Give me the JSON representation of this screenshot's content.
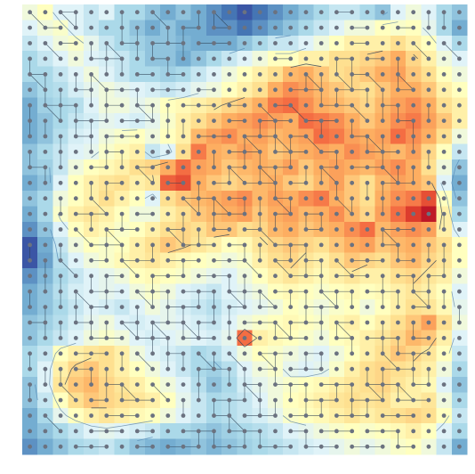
{
  "chart_data": {
    "type": "heatmap",
    "title": "",
    "xlabel": "",
    "ylabel": "",
    "axes_visible": false,
    "grid": false,
    "legend": "none",
    "colormap": "RdYlBu_r",
    "colormap_stops": [
      "#313695",
      "#4575b4",
      "#74add1",
      "#abd9e9",
      "#e0f3f8",
      "#ffffbf",
      "#fee090",
      "#fdae61",
      "#f46d43",
      "#d73027",
      "#a50026"
    ],
    "value_range": [
      0,
      1
    ],
    "grid_size": [
      29,
      29
    ],
    "overlays": [
      "sample-points",
      "point-connections",
      "contour-lines"
    ],
    "point_color": "#6b7280",
    "edge_color": "#2c3e50",
    "values": [
      [
        0.45,
        0.5,
        0.4,
        0.4,
        0.35,
        0.4,
        0.3,
        0.3,
        0.25,
        0.2,
        0.25,
        0.2,
        0.15,
        0.1,
        0.05,
        0.1,
        0.15,
        0.2,
        0.25,
        0.3,
        0.35,
        0.35,
        0.3,
        0.25,
        0.4,
        0.45,
        0.4,
        0.3,
        0.25
      ],
      [
        0.4,
        0.45,
        0.48,
        0.4,
        0.35,
        0.3,
        0.3,
        0.25,
        0.2,
        0.25,
        0.2,
        0.2,
        0.15,
        0.15,
        0.1,
        0.15,
        0.2,
        0.25,
        0.3,
        0.35,
        0.4,
        0.45,
        0.45,
        0.5,
        0.48,
        0.5,
        0.42,
        0.3,
        0.2
      ],
      [
        0.35,
        0.4,
        0.45,
        0.48,
        0.42,
        0.35,
        0.3,
        0.28,
        0.25,
        0.25,
        0.22,
        0.2,
        0.2,
        0.2,
        0.25,
        0.3,
        0.35,
        0.35,
        0.4,
        0.45,
        0.5,
        0.55,
        0.55,
        0.55,
        0.6,
        0.55,
        0.5,
        0.4,
        0.3
      ],
      [
        0.3,
        0.35,
        0.4,
        0.45,
        0.4,
        0.38,
        0.35,
        0.3,
        0.25,
        0.25,
        0.2,
        0.25,
        0.3,
        0.35,
        0.4,
        0.45,
        0.5,
        0.5,
        0.55,
        0.55,
        0.6,
        0.6,
        0.62,
        0.65,
        0.7,
        0.62,
        0.55,
        0.45,
        0.4
      ],
      [
        0.3,
        0.3,
        0.35,
        0.4,
        0.45,
        0.4,
        0.35,
        0.3,
        0.3,
        0.28,
        0.3,
        0.35,
        0.4,
        0.45,
        0.5,
        0.55,
        0.6,
        0.68,
        0.7,
        0.65,
        0.6,
        0.62,
        0.65,
        0.7,
        0.72,
        0.65,
        0.6,
        0.5,
        0.45
      ],
      [
        0.25,
        0.3,
        0.32,
        0.38,
        0.42,
        0.45,
        0.42,
        0.4,
        0.38,
        0.35,
        0.38,
        0.42,
        0.45,
        0.5,
        0.55,
        0.6,
        0.7,
        0.75,
        0.72,
        0.68,
        0.65,
        0.62,
        0.6,
        0.65,
        0.7,
        0.7,
        0.65,
        0.55,
        0.5
      ],
      [
        0.2,
        0.28,
        0.3,
        0.32,
        0.4,
        0.45,
        0.45,
        0.42,
        0.45,
        0.5,
        0.52,
        0.55,
        0.58,
        0.62,
        0.65,
        0.7,
        0.78,
        0.8,
        0.75,
        0.7,
        0.68,
        0.65,
        0.62,
        0.68,
        0.72,
        0.75,
        0.7,
        0.6,
        0.55
      ],
      [
        0.2,
        0.25,
        0.3,
        0.35,
        0.38,
        0.42,
        0.4,
        0.38,
        0.42,
        0.48,
        0.55,
        0.6,
        0.65,
        0.7,
        0.72,
        0.75,
        0.72,
        0.7,
        0.8,
        0.78,
        0.75,
        0.7,
        0.65,
        0.7,
        0.75,
        0.78,
        0.72,
        0.65,
        0.55
      ],
      [
        0.2,
        0.25,
        0.32,
        0.38,
        0.4,
        0.45,
        0.48,
        0.5,
        0.45,
        0.5,
        0.55,
        0.68,
        0.72,
        0.75,
        0.7,
        0.72,
        0.68,
        0.7,
        0.72,
        0.8,
        0.78,
        0.72,
        0.7,
        0.72,
        0.8,
        0.75,
        0.7,
        0.6,
        0.45
      ],
      [
        0.25,
        0.3,
        0.35,
        0.4,
        0.42,
        0.48,
        0.52,
        0.55,
        0.35,
        0.4,
        0.6,
        0.78,
        0.7,
        0.68,
        0.72,
        0.7,
        0.65,
        0.68,
        0.7,
        0.72,
        0.7,
        0.75,
        0.72,
        0.7,
        0.68,
        0.72,
        0.62,
        0.5,
        0.35
      ],
      [
        0.25,
        0.28,
        0.35,
        0.45,
        0.5,
        0.52,
        0.55,
        0.6,
        0.62,
        0.7,
        0.8,
        0.72,
        0.7,
        0.65,
        0.68,
        0.7,
        0.68,
        0.72,
        0.65,
        0.7,
        0.72,
        0.7,
        0.68,
        0.72,
        0.75,
        0.7,
        0.6,
        0.45,
        0.25
      ],
      [
        0.2,
        0.25,
        0.4,
        0.5,
        0.55,
        0.58,
        0.6,
        0.55,
        0.58,
        0.82,
        0.85,
        0.7,
        0.65,
        0.62,
        0.65,
        0.68,
        0.7,
        0.65,
        0.62,
        0.68,
        0.72,
        0.65,
        0.6,
        0.68,
        0.72,
        0.7,
        0.65,
        0.4,
        0.2
      ],
      [
        0.25,
        0.3,
        0.45,
        0.5,
        0.55,
        0.6,
        0.55,
        0.5,
        0.4,
        0.6,
        0.65,
        0.68,
        0.7,
        0.72,
        0.75,
        0.68,
        0.72,
        0.7,
        0.75,
        0.78,
        0.7,
        0.65,
        0.6,
        0.7,
        0.75,
        0.78,
        0.85,
        0.5,
        0.25
      ],
      [
        0.2,
        0.3,
        0.48,
        0.55,
        0.58,
        0.55,
        0.5,
        0.45,
        0.45,
        0.55,
        0.6,
        0.65,
        0.68,
        0.7,
        0.72,
        0.65,
        0.7,
        0.72,
        0.68,
        0.7,
        0.75,
        0.68,
        0.62,
        0.72,
        0.8,
        0.88,
        0.95,
        0.55,
        0.3
      ],
      [
        0.15,
        0.25,
        0.4,
        0.5,
        0.55,
        0.52,
        0.48,
        0.5,
        0.55,
        0.6,
        0.62,
        0.6,
        0.65,
        0.65,
        0.6,
        0.62,
        0.68,
        0.7,
        0.65,
        0.68,
        0.7,
        0.75,
        0.8,
        0.68,
        0.72,
        0.75,
        0.72,
        0.55,
        0.4
      ],
      [
        0.05,
        0.2,
        0.35,
        0.45,
        0.5,
        0.48,
        0.5,
        0.55,
        0.6,
        0.65,
        0.62,
        0.58,
        0.55,
        0.5,
        0.52,
        0.58,
        0.62,
        0.65,
        0.62,
        0.6,
        0.65,
        0.7,
        0.72,
        0.65,
        0.68,
        0.7,
        0.65,
        0.6,
        0.5
      ],
      [
        0.05,
        0.18,
        0.32,
        0.4,
        0.45,
        0.48,
        0.52,
        0.55,
        0.58,
        0.55,
        0.52,
        0.5,
        0.48,
        0.45,
        0.48,
        0.55,
        0.6,
        0.62,
        0.58,
        0.55,
        0.6,
        0.65,
        0.62,
        0.6,
        0.65,
        0.68,
        0.62,
        0.58,
        0.5
      ],
      [
        0.15,
        0.22,
        0.3,
        0.35,
        0.4,
        0.42,
        0.45,
        0.5,
        0.52,
        0.5,
        0.48,
        0.45,
        0.42,
        0.4,
        0.45,
        0.5,
        0.55,
        0.58,
        0.55,
        0.52,
        0.55,
        0.58,
        0.55,
        0.55,
        0.6,
        0.62,
        0.58,
        0.55,
        0.45
      ],
      [
        0.2,
        0.25,
        0.32,
        0.38,
        0.4,
        0.42,
        0.4,
        0.45,
        0.48,
        0.45,
        0.4,
        0.38,
        0.35,
        0.4,
        0.42,
        0.45,
        0.5,
        0.52,
        0.5,
        0.48,
        0.5,
        0.52,
        0.5,
        0.52,
        0.55,
        0.58,
        0.55,
        0.5,
        0.4
      ],
      [
        0.2,
        0.25,
        0.3,
        0.35,
        0.4,
        0.38,
        0.35,
        0.4,
        0.45,
        0.42,
        0.38,
        0.35,
        0.32,
        0.38,
        0.4,
        0.42,
        0.45,
        0.5,
        0.48,
        0.45,
        0.48,
        0.5,
        0.45,
        0.5,
        0.55,
        0.6,
        0.58,
        0.52,
        0.42
      ],
      [
        0.25,
        0.28,
        0.32,
        0.38,
        0.42,
        0.45,
        0.4,
        0.38,
        0.4,
        0.42,
        0.4,
        0.38,
        0.35,
        0.4,
        0.45,
        0.48,
        0.5,
        0.52,
        0.5,
        0.48,
        0.52,
        0.55,
        0.5,
        0.55,
        0.6,
        0.65,
        0.72,
        0.6,
        0.45
      ],
      [
        0.25,
        0.3,
        0.35,
        0.4,
        0.45,
        0.48,
        0.45,
        0.4,
        0.38,
        0.4,
        0.42,
        0.4,
        0.38,
        0.42,
        0.8,
        0.55,
        0.52,
        0.5,
        0.48,
        0.45,
        0.5,
        0.52,
        0.55,
        0.58,
        0.62,
        0.68,
        0.65,
        0.55,
        0.4
      ],
      [
        0.3,
        0.35,
        0.5,
        0.55,
        0.58,
        0.6,
        0.55,
        0.45,
        0.4,
        0.38,
        0.35,
        0.3,
        0.32,
        0.38,
        0.45,
        0.5,
        0.48,
        0.45,
        0.42,
        0.4,
        0.45,
        0.5,
        0.55,
        0.6,
        0.65,
        0.62,
        0.58,
        0.5,
        0.35
      ],
      [
        0.3,
        0.4,
        0.55,
        0.62,
        0.65,
        0.6,
        0.55,
        0.5,
        0.45,
        0.4,
        0.35,
        0.3,
        0.28,
        0.32,
        0.4,
        0.45,
        0.48,
        0.42,
        0.4,
        0.42,
        0.48,
        0.55,
        0.6,
        0.62,
        0.6,
        0.58,
        0.55,
        0.45,
        0.3
      ],
      [
        0.25,
        0.4,
        0.58,
        0.65,
        0.68,
        0.62,
        0.58,
        0.55,
        0.5,
        0.45,
        0.4,
        0.32,
        0.25,
        0.3,
        0.38,
        0.42,
        0.45,
        0.48,
        0.5,
        0.52,
        0.55,
        0.58,
        0.6,
        0.62,
        0.58,
        0.55,
        0.52,
        0.4,
        0.25
      ],
      [
        0.25,
        0.35,
        0.5,
        0.6,
        0.65,
        0.62,
        0.6,
        0.58,
        0.55,
        0.5,
        0.42,
        0.35,
        0.3,
        0.32,
        0.35,
        0.4,
        0.45,
        0.5,
        0.52,
        0.55,
        0.58,
        0.6,
        0.58,
        0.6,
        0.55,
        0.55,
        0.58,
        0.45,
        0.3
      ],
      [
        0.2,
        0.3,
        0.42,
        0.5,
        0.55,
        0.58,
        0.55,
        0.52,
        0.5,
        0.45,
        0.4,
        0.35,
        0.3,
        0.32,
        0.35,
        0.38,
        0.42,
        0.48,
        0.5,
        0.52,
        0.55,
        0.58,
        0.55,
        0.58,
        0.6,
        0.62,
        0.6,
        0.5,
        0.35
      ],
      [
        0.2,
        0.25,
        0.3,
        0.35,
        0.4,
        0.42,
        0.4,
        0.38,
        0.35,
        0.3,
        0.3,
        0.28,
        0.25,
        0.28,
        0.3,
        0.32,
        0.35,
        0.4,
        0.42,
        0.45,
        0.48,
        0.5,
        0.48,
        0.5,
        0.52,
        0.55,
        0.5,
        0.4,
        0.3
      ],
      [
        0.15,
        0.2,
        0.25,
        0.3,
        0.32,
        0.35,
        0.3,
        0.25,
        0.22,
        0.2,
        0.22,
        0.25,
        0.22,
        0.25,
        0.28,
        0.3,
        0.32,
        0.35,
        0.38,
        0.4,
        0.42,
        0.45,
        0.42,
        0.45,
        0.48,
        0.5,
        0.45,
        0.35,
        0.2
      ]
    ]
  }
}
